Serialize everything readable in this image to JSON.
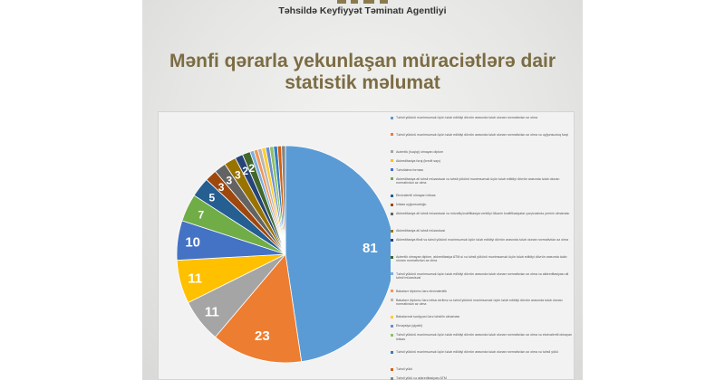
{
  "header": {
    "agency_name": "Təhsildə Keyfiyyət Təminatı Agentliyi"
  },
  "page_title": {
    "line1": "Mənfi qərarla yekunlaşan müraciətlərə dair",
    "line2": "statistik məlumat"
  },
  "chart_data": {
    "type": "pie",
    "title": "",
    "slices": [
      {
        "label": "Təhsil yükünü mənimsəmək üçün tələb edildiyi dövrün arasında tələb olunan normativdən az olma",
        "value": 81,
        "color": "#5b9bd5"
      },
      {
        "label": "Təhsil yükünü mənimsəmək üçün tələb edildiyi dövrün arasında tələb olunan normativdən az olma və uyğunsuzluq fərqi",
        "value": 23,
        "color": "#ed7d31"
      },
      {
        "label": "Autentik (həqiqi) olmayan diplom",
        "value": 11,
        "color": "#a5a5a5"
      },
      {
        "label": "Akkreditasiya fərqi (kredit sayı)",
        "value": 11,
        "color": "#ffc000"
      },
      {
        "label": "Təhsilalma forması",
        "value": 10,
        "color": "#4472c4"
      },
      {
        "label": "Akkreditasiya ali təhsil müəssisəsi və təhsil yükünü mənimsəmək üçün tələb edildiyi dövrün arasında tələb olunan normativdən az olma",
        "value": 7,
        "color": "#70ad47"
      },
      {
        "label": "Ekvivalentli olmayan ixtisas",
        "value": 5,
        "color": "#255e91"
      },
      {
        "label": "İxtisas uyğunsuzluğu",
        "value": 3,
        "color": "#9e480e"
      },
      {
        "label": "Akkreditasiya ali təhsil müəssisəsi və müvafiq kvalifikasiya verildiyi ölkənin kvalifikasiyalar çərçivəsində yerinin olmaması",
        "value": 3,
        "color": "#636363"
      },
      {
        "label": "Akkreditasiya ali təhsil müəssisəsi",
        "value": 3,
        "color": "#997300"
      },
      {
        "label": "Akkreditasiya fiksil və təhsil yükünü mənimsəmək üçün tələb edildiyi dövrün arasında tələb olunan normativdən az olma",
        "value": 2,
        "color": "#264478"
      },
      {
        "label": "Autentik olmayan diplom, akkreditasiya ATM-si və təhsil yükünü mənimsəmək üçün tələb edildiyi dövrün arasında tələb olunan normativdən az olma",
        "value": 2,
        "color": "#43682b"
      },
      {
        "label": "Təhsil yükünü mənimsəmək üçün tələb edildiyi dövrün arasında tələb olunan normativdən az olma və akkreditasiyası ali təhsil müəssisəsi",
        "value": 1,
        "color": "#7cafdd"
      },
      {
        "label": "Bakalavr diplomu üzrə ekvivalentlik",
        "value": 1,
        "color": "#f1975a"
      },
      {
        "label": "Bakalavr diplomu üzrə ixtisa verilmə və təhsil yükünü mənimsəmək üçün tələb edildiyi dövrün arasında tələb olunan normativdən az olma",
        "value": 1,
        "color": "#b7b7b7"
      },
      {
        "label": "Bakalavrıat səviyyəsi üzrə təhsilin olmaması",
        "value": 1,
        "color": "#ffcd33"
      },
      {
        "label": "Ekvaysiya (qiyabi)",
        "value": 1,
        "color": "#698ed0"
      },
      {
        "label": "Təhsil yükünü mənimsəmək üçün tələb edildiyi dövrün arasında tələb olunan normativdən az olma və ekvivalentli olmayan ixtisas",
        "value": 1,
        "color": "#8cc168"
      },
      {
        "label": "Təhsil yükünü mənimsəmək üçün tələb edildiyi dövrün arasında tələb olunan normativdən az olma və təhsil yükü",
        "value": 1,
        "color": "#327dc2"
      },
      {
        "label": "Təhsil yükü",
        "value": 1,
        "color": "#d26012"
      },
      {
        "label": "Təhsil yükü və akkreditasiyası ATM",
        "value": 1,
        "color": "#848484"
      }
    ],
    "legend_placement": "right"
  }
}
